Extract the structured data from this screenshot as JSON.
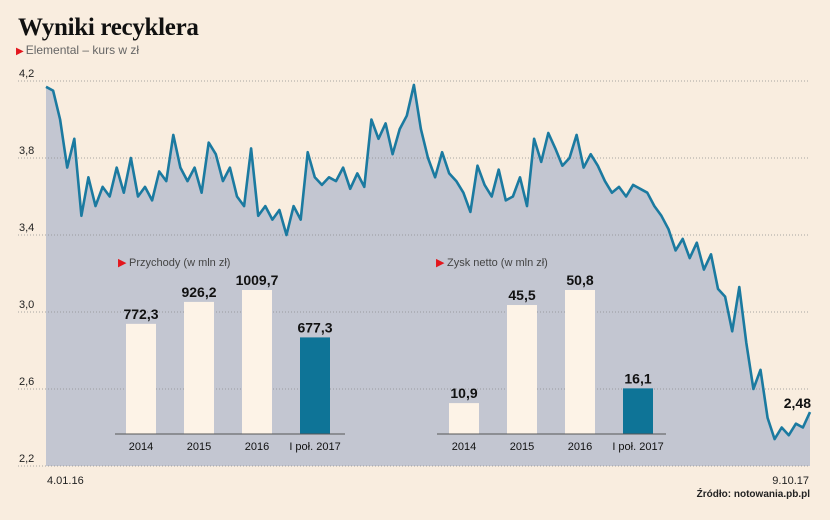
{
  "title": "Wyniki recyklera",
  "subtitle": "Elemental – kurs w zł",
  "source": "Źródło: notowania.pb.pl",
  "colors": {
    "line": "#1b7aa0",
    "area": "#c3c6d1",
    "background": "#f9eddf",
    "bar_past": "#fdf3e7",
    "bar_current": "#0e7497",
    "marker": "#e3161d"
  },
  "chart_data": [
    {
      "type": "area",
      "title": "Elemental – kurs w zł",
      "ylim": [
        2.2,
        4.2
      ],
      "yticks": [
        "4,2",
        "3,8",
        "3,4",
        "3,0",
        "2,6",
        "2,2"
      ],
      "ytick_values": [
        4.2,
        3.8,
        3.4,
        3.0,
        2.6,
        2.2
      ],
      "x_start_label": "4.01.16",
      "x_end_label": "9.10.17",
      "last_value_label": "2,48",
      "grid": true,
      "values": [
        4.17,
        4.15,
        4.0,
        3.75,
        3.9,
        3.5,
        3.7,
        3.55,
        3.65,
        3.6,
        3.75,
        3.62,
        3.8,
        3.6,
        3.65,
        3.58,
        3.73,
        3.68,
        3.92,
        3.75,
        3.68,
        3.75,
        3.62,
        3.88,
        3.82,
        3.68,
        3.75,
        3.6,
        3.55,
        3.85,
        3.5,
        3.55,
        3.48,
        3.53,
        3.4,
        3.55,
        3.48,
        3.83,
        3.7,
        3.66,
        3.7,
        3.68,
        3.75,
        3.64,
        3.72,
        3.65,
        4.0,
        3.9,
        3.98,
        3.82,
        3.95,
        4.02,
        4.18,
        3.95,
        3.8,
        3.7,
        3.83,
        3.72,
        3.68,
        3.62,
        3.52,
        3.76,
        3.66,
        3.6,
        3.74,
        3.58,
        3.6,
        3.7,
        3.55,
        3.9,
        3.78,
        3.93,
        3.85,
        3.76,
        3.8,
        3.92,
        3.75,
        3.82,
        3.76,
        3.68,
        3.62,
        3.65,
        3.6,
        3.66,
        3.64,
        3.62,
        3.55,
        3.5,
        3.43,
        3.32,
        3.38,
        3.28,
        3.36,
        3.22,
        3.3,
        3.12,
        3.08,
        2.9,
        3.13,
        2.84,
        2.6,
        2.7,
        2.45,
        2.34,
        2.4,
        2.36,
        2.42,
        2.4,
        2.48
      ]
    },
    {
      "type": "bar",
      "title": "Przychody (w mln zł)",
      "categories": [
        "2014",
        "2015",
        "2016",
        "I poł. 2017"
      ],
      "values": [
        772.3,
        926.2,
        1009.7,
        677.3
      ],
      "value_labels": [
        "772,3",
        "926,2",
        "1009,7",
        "677,3"
      ],
      "highlight_index": 3
    },
    {
      "type": "bar",
      "title": "Zysk netto (w mln zł)",
      "categories": [
        "2014",
        "2015",
        "2016",
        "I poł. 2017"
      ],
      "values": [
        10.9,
        45.5,
        50.8,
        16.1
      ],
      "value_labels": [
        "10,9",
        "45,5",
        "50,8",
        "16,1"
      ],
      "highlight_index": 3
    }
  ]
}
